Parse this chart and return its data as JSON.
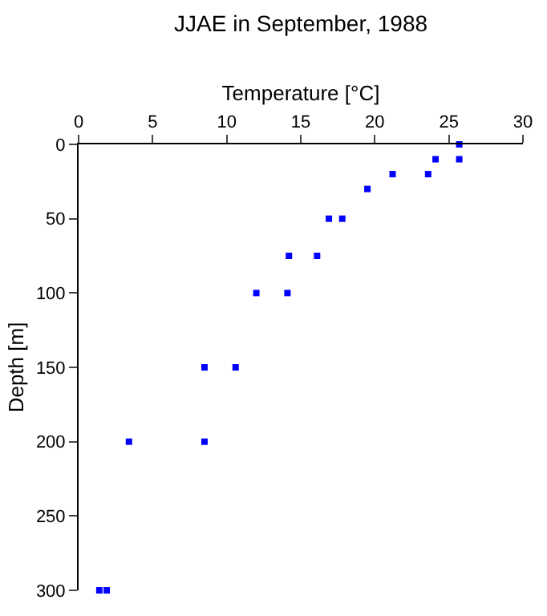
{
  "chart_data": {
    "type": "scatter",
    "title": "JJAE in September, 1988",
    "xlabel": "Temperature [°C]",
    "ylabel": "Depth [m]",
    "x": [
      25.7,
      24.1,
      25.7,
      21.2,
      23.6,
      19.5,
      16.9,
      17.8,
      14.2,
      16.1,
      12.0,
      14.1,
      8.5,
      10.6,
      3.4,
      8.5,
      1.4,
      1.9
    ],
    "series": [
      {
        "color": "#0000ff",
        "values": [
          0,
          10,
          10,
          20,
          20,
          30,
          50,
          50,
          75,
          75,
          100,
          100,
          150,
          150,
          200,
          200,
          300,
          300
        ]
      }
    ],
    "xlim": [
      0,
      30
    ],
    "xticks": [
      0,
      5,
      10,
      15,
      20,
      25,
      30
    ],
    "ylim": [
      300,
      0
    ],
    "yticks": [
      0,
      50,
      100,
      150,
      200,
      250,
      300
    ],
    "marker": "square",
    "grid": false
  }
}
